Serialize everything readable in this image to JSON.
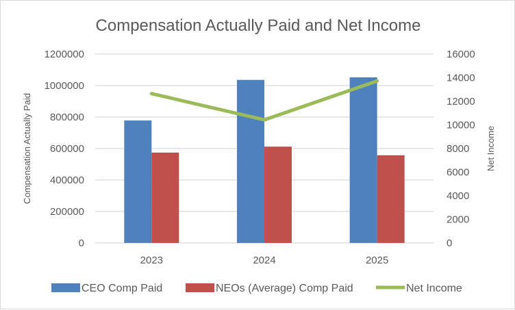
{
  "chart_data": {
    "type": "bar",
    "title": "Compensation Actually Paid and Net Income",
    "categories": [
      "2023",
      "2024",
      "2025"
    ],
    "ylabel": "Compensation Actually Paid",
    "y2label": "Net Income",
    "ylim": [
      0,
      1200000
    ],
    "y2lim": [
      0,
      16000
    ],
    "yticks": [
      "0",
      "200000",
      "400000",
      "600000",
      "800000",
      "1000000",
      "1200000"
    ],
    "y2ticks": [
      "0",
      "2000",
      "4000",
      "6000",
      "8000",
      "10000",
      "12000",
      "14000",
      "16000"
    ],
    "grid": true,
    "legend_position": "bottom",
    "series": [
      {
        "name": "CEO Comp Paid",
        "type": "bar",
        "axis": "left",
        "color": "#4f81bd",
        "values": [
          778000,
          1036000,
          1052000
        ]
      },
      {
        "name": "NEOs (Average) Comp Paid",
        "type": "bar",
        "axis": "left",
        "color": "#c0504d",
        "values": [
          574000,
          612000,
          557000
        ]
      },
      {
        "name": "Net Income",
        "type": "line",
        "axis": "right",
        "color": "#9bbb59",
        "values": [
          12650,
          10430,
          13720
        ]
      }
    ]
  }
}
